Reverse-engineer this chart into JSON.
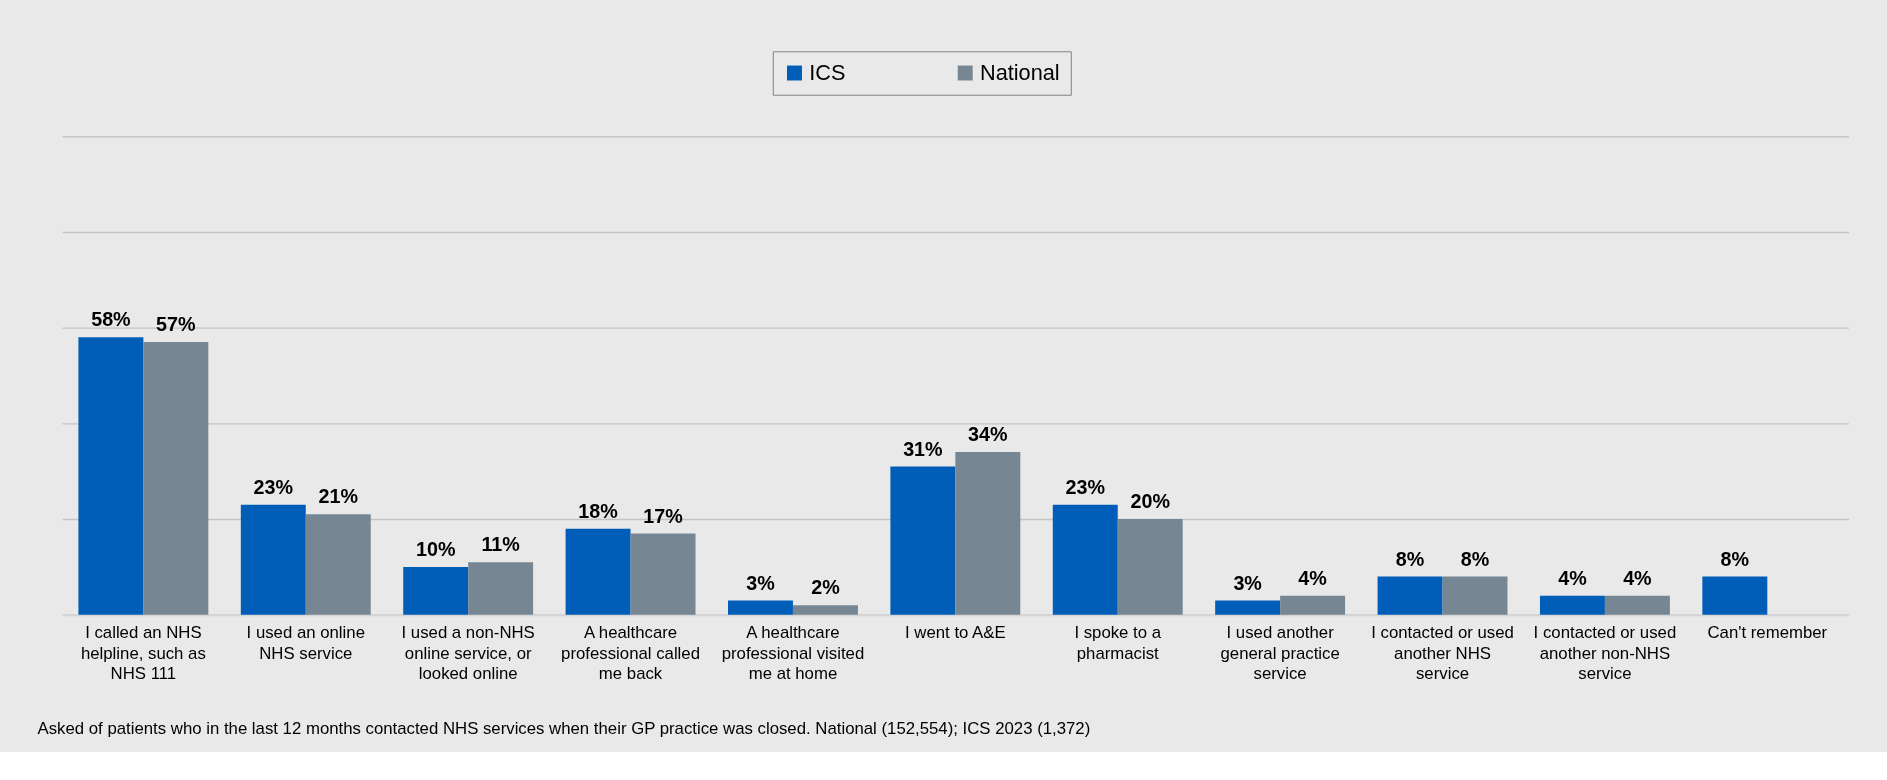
{
  "chart_data": {
    "type": "bar",
    "categories": [
      "I called an NHS helpline, such as NHS 111",
      "I used an online NHS service",
      "I used a non-NHS online service, or looked online",
      "A healthcare professional called me back",
      "A healthcare professional visited me at home",
      "I went to A&E",
      "I spoke to a pharmacist",
      "I used another general practice service",
      "I contacted or used another NHS service",
      "I contacted or used another non-NHS service",
      "Can't remember"
    ],
    "series": [
      {
        "name": "ICS",
        "color": "#005eb8",
        "values": [
          58,
          23,
          10,
          18,
          3,
          31,
          23,
          3,
          8,
          4,
          8
        ],
        "value_labels": [
          "58%",
          "23%",
          "10%",
          "18%",
          "3%",
          "31%",
          "23%",
          "3%",
          "8%",
          "4%",
          "8%"
        ]
      },
      {
        "name": "National",
        "color": "#768692",
        "values": [
          57,
          21,
          11,
          17,
          2,
          34,
          20,
          4,
          8,
          4,
          null
        ],
        "value_labels": [
          "57%",
          "21%",
          "11%",
          "17%",
          "2%",
          "34%",
          "20%",
          "4%",
          "8%",
          "4%",
          null
        ]
      }
    ],
    "ylim": [
      0,
      100
    ],
    "yticks": [
      {
        "value": 0,
        "label": null
      },
      {
        "value": 20,
        "label": null
      },
      {
        "value": 40,
        "label": null
      },
      {
        "value": 60,
        "label": null
      },
      {
        "value": 80,
        "label": null
      },
      {
        "value": 100,
        "label": null
      }
    ],
    "grid": "y",
    "legend": "top",
    "tick_labels": "x",
    "annotations": [
      "Asked of patients who in the last 12 months contacted NHS services when their GP practice was closed. National (152,554); ICS 2023 (1,372)"
    ]
  }
}
